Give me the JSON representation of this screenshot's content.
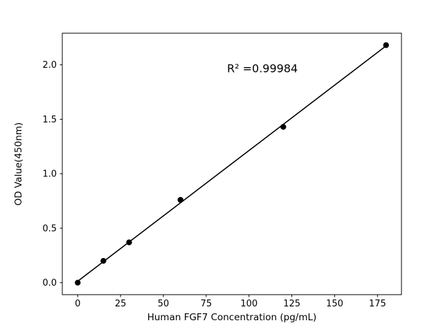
{
  "figure": {
    "background": "#ffffff"
  },
  "chart_data": {
    "type": "scatter",
    "x": [
      0,
      15,
      30,
      60,
      120,
      180
    ],
    "y": [
      0.0,
      0.2,
      0.37,
      0.76,
      1.43,
      2.18
    ],
    "trendline": true,
    "annotation": "R² =0.99984",
    "title": "",
    "xlabel": "Human FGF7 Concentration (pg/mL)",
    "ylabel": "OD Value(450nm)",
    "xlim": [
      -9,
      189
    ],
    "ylim": [
      -0.11,
      2.29
    ],
    "xticks": [
      0,
      25,
      50,
      75,
      100,
      125,
      150,
      175
    ],
    "yticks": [
      "0.0",
      "0.5",
      "1.0",
      "1.5",
      "2.0"
    ],
    "legend": "none",
    "grid": false,
    "marker_color": "#000000",
    "line_color": "#000000"
  }
}
